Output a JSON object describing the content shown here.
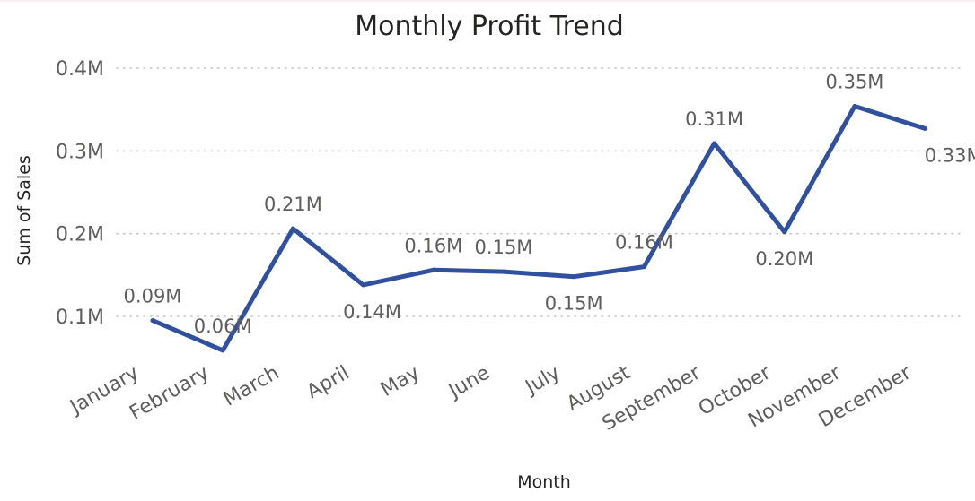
{
  "chart_data": {
    "type": "line",
    "title": "Monthly Profit Trend",
    "xlabel": "Month",
    "ylabel": "Sum of Sales",
    "categories": [
      "January",
      "February",
      "March",
      "April",
      "May",
      "June",
      "July",
      "August",
      "September",
      "October",
      "November",
      "December"
    ],
    "series": [
      {
        "values": [
          0.095,
          0.059,
          0.206,
          0.138,
          0.156,
          0.154,
          0.148,
          0.16,
          0.309,
          0.202,
          0.354,
          0.327
        ],
        "labels": [
          "0.09M",
          "0.06M",
          "0.21M",
          "0.14M",
          "0.16M",
          "0.15M",
          "0.15M",
          "0.16M",
          "0.31M",
          "0.20M",
          "0.35M",
          "0.33M"
        ],
        "color": "#3050a0"
      }
    ],
    "y_ticks": [
      0.1,
      0.2,
      0.3,
      0.4
    ],
    "y_tick_labels": [
      "0.1M",
      "0.2M",
      "0.3M",
      "0.4M"
    ],
    "ylim": [
      0.05,
      0.4
    ],
    "grid": true,
    "legend": "none"
  }
}
